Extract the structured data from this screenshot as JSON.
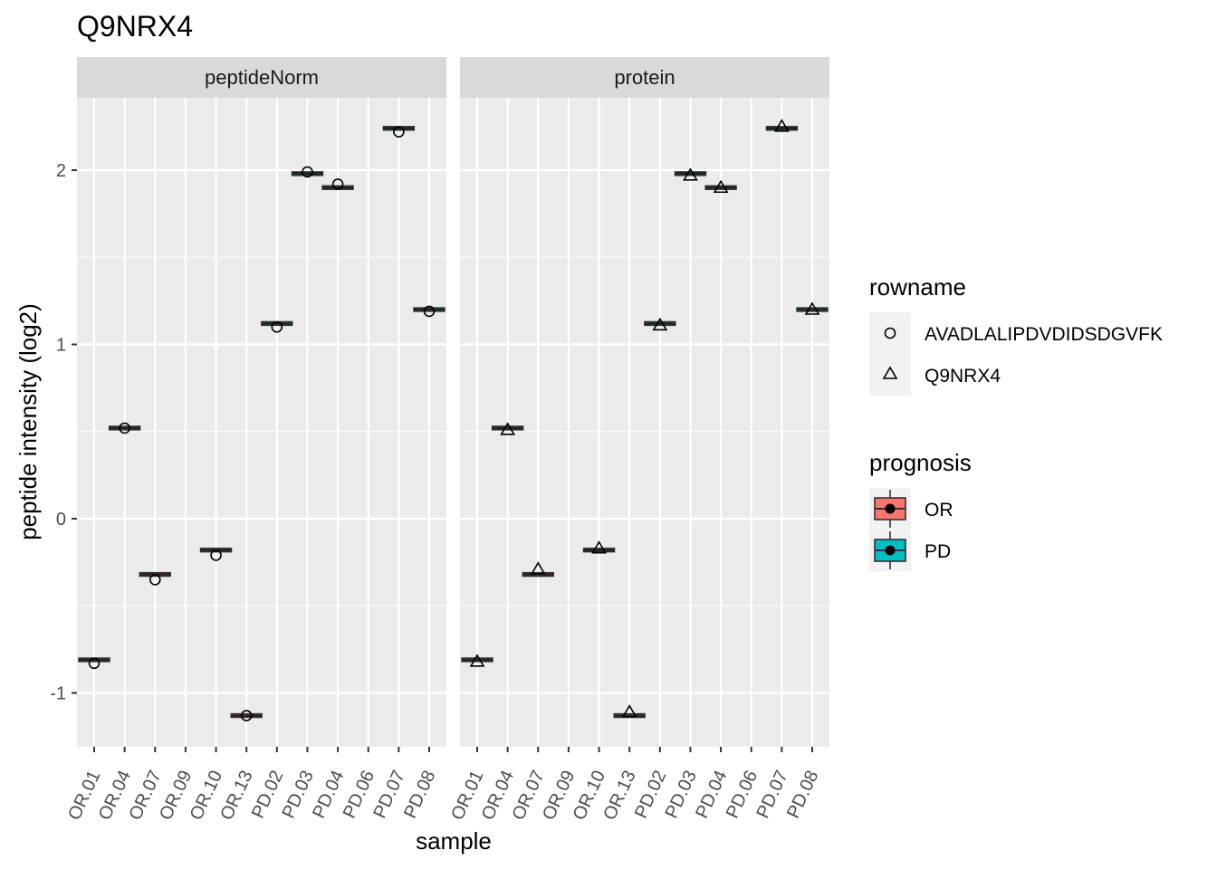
{
  "chart_data": {
    "type": "boxplot",
    "title": "Q9NRX4",
    "xlabel": "sample",
    "ylabel": "peptide intensity (log2)",
    "ylim": [
      -1.3,
      2.5
    ],
    "yticks": [
      -1,
      0,
      1,
      2
    ],
    "categories": [
      "OR.01",
      "OR.04",
      "OR.07",
      "OR.09",
      "OR.10",
      "OR.13",
      "PD.02",
      "PD.03",
      "PD.04",
      "PD.06",
      "PD.07",
      "PD.08"
    ],
    "prognosis": [
      "OR",
      "OR",
      "OR",
      "OR",
      "OR",
      "OR",
      "PD",
      "PD",
      "PD",
      "PD",
      "PD",
      "PD"
    ],
    "panels": [
      {
        "label": "peptideNorm",
        "box_medians": [
          -0.81,
          0.52,
          -0.32,
          null,
          -0.18,
          -1.13,
          1.12,
          1.98,
          1.9,
          null,
          2.24,
          1.2
        ],
        "points": {
          "rowname": "AVADLALIPDVDIDSDGVFK",
          "values": [
            -0.83,
            0.52,
            -0.35,
            null,
            -0.21,
            -1.13,
            1.1,
            1.99,
            1.92,
            null,
            2.22,
            1.19
          ]
        }
      },
      {
        "label": "protein",
        "box_medians": [
          -0.81,
          0.52,
          -0.32,
          null,
          -0.18,
          -1.13,
          1.12,
          1.98,
          1.9,
          null,
          2.24,
          1.2
        ],
        "points": {
          "rowname": "Q9NRX4",
          "values": [
            -0.82,
            0.51,
            -0.29,
            null,
            -0.17,
            -1.11,
            1.11,
            1.97,
            1.9,
            null,
            2.25,
            1.2
          ]
        }
      }
    ],
    "legend": {
      "rowname": {
        "title": "rowname",
        "items": [
          "AVADLALIPDVDIDSDGVFK",
          "Q9NRX4"
        ]
      },
      "prognosis": {
        "title": "prognosis",
        "items": [
          {
            "label": "OR",
            "color": "#F8766D"
          },
          {
            "label": "PD",
            "color": "#00BFC4"
          }
        ]
      }
    },
    "legend_position": "right",
    "grid": true,
    "colors": {
      "panel_bg": "#EBEBEB",
      "strip_bg": "#D9D9D9",
      "grid": "#FFFFFF",
      "box_line": "#333333"
    }
  }
}
